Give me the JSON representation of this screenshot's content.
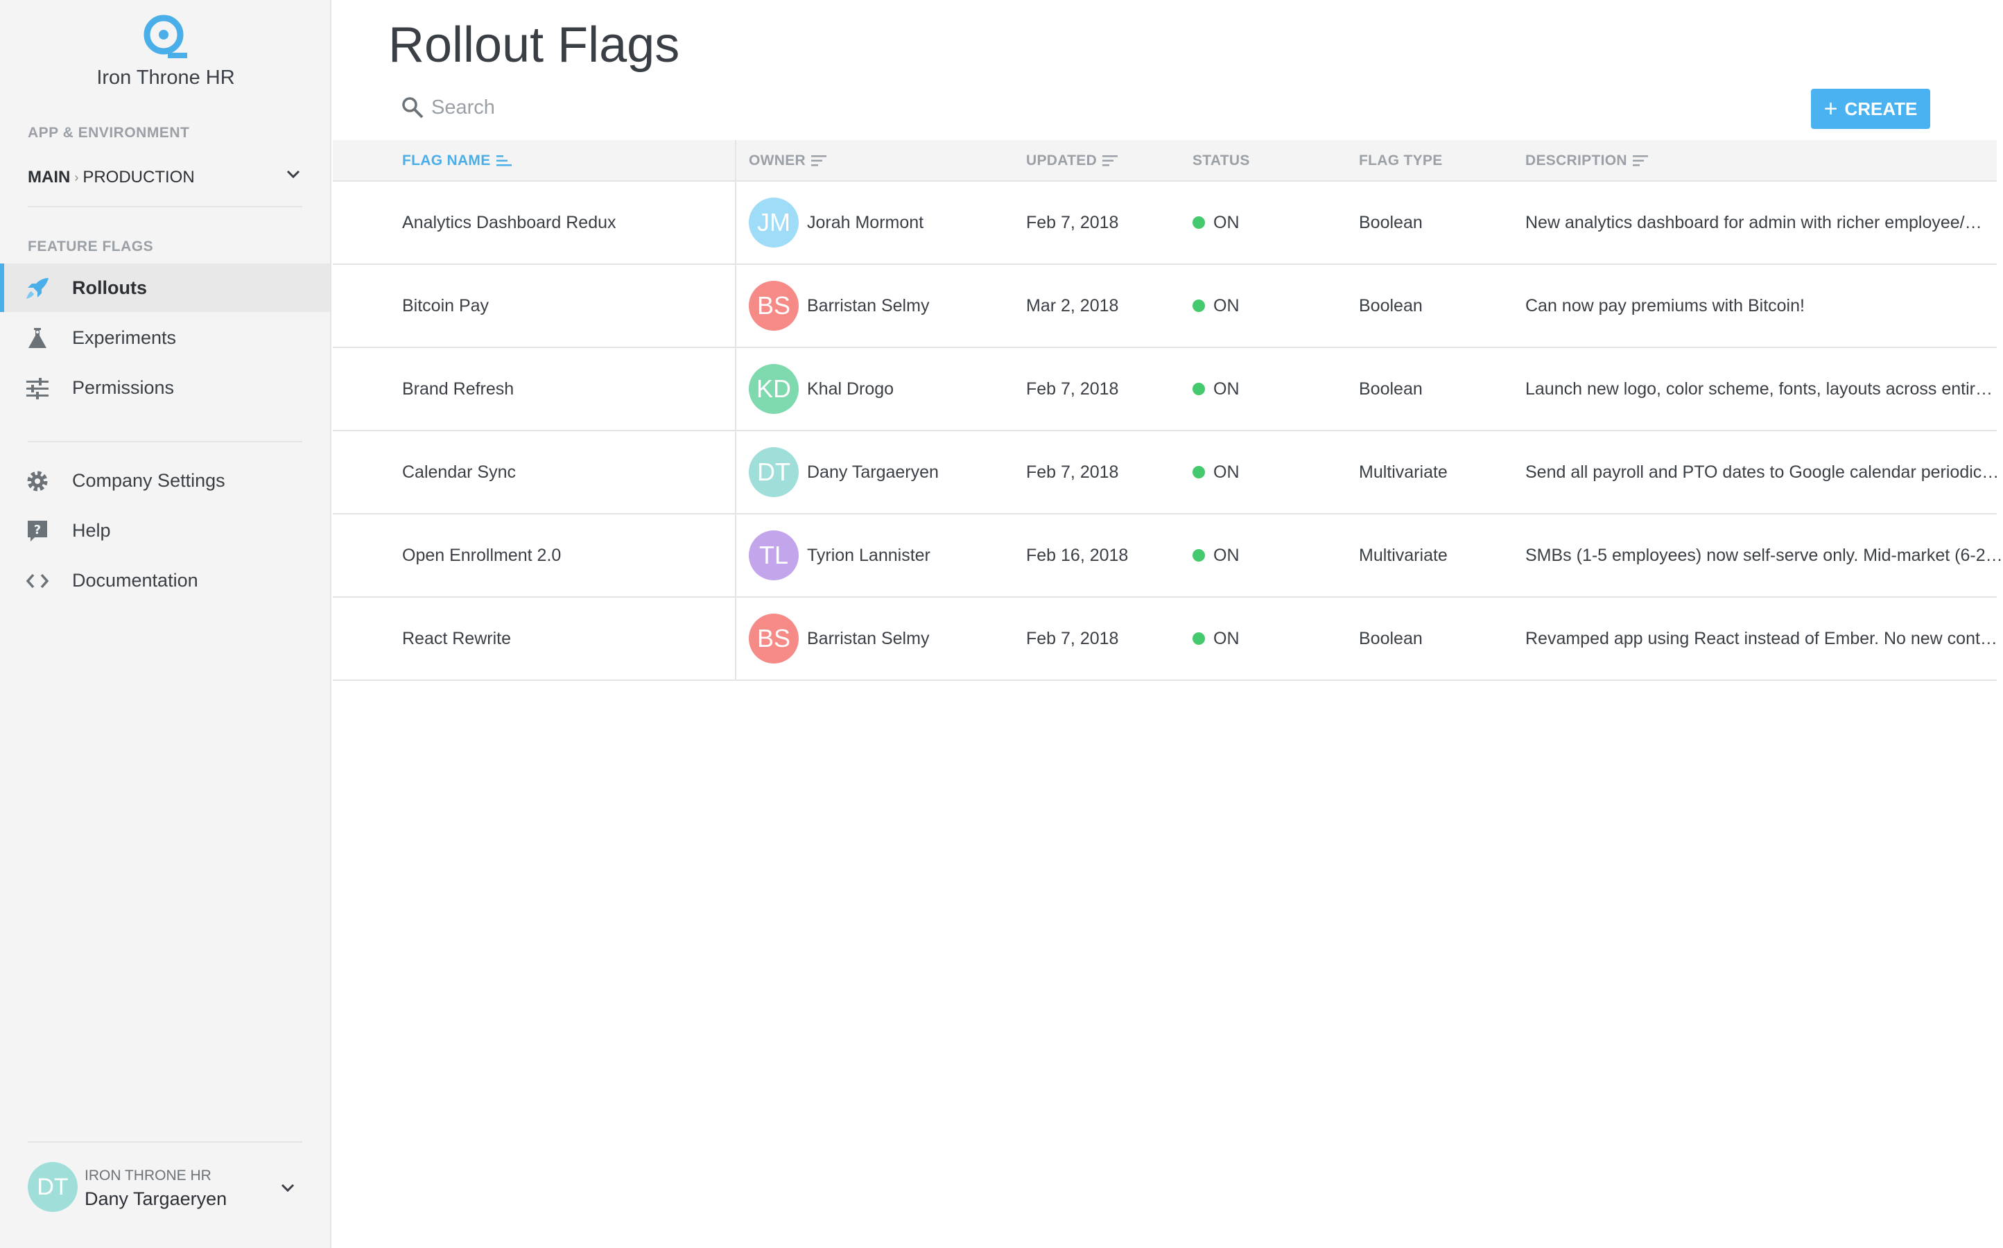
{
  "app": {
    "org_name": "Iron Throne HR",
    "logo_icon": "logo-q-icon",
    "accent_color": "#4aaee8"
  },
  "sidebar": {
    "env_section_label": "APP & ENVIRONMENT",
    "app_name": "MAIN",
    "env_separator": "›",
    "env_name": "PRODUCTION",
    "flags_section_label": "FEATURE FLAGS",
    "items": [
      {
        "label": "Rollouts",
        "icon": "rocket-icon",
        "active": true
      },
      {
        "label": "Experiments",
        "icon": "flask-icon",
        "active": false
      },
      {
        "label": "Permissions",
        "icon": "sliders-icon",
        "active": false
      }
    ],
    "secondary_items": [
      {
        "label": "Company Settings",
        "icon": "gear-icon"
      },
      {
        "label": "Help",
        "icon": "help-icon"
      },
      {
        "label": "Documentation",
        "icon": "code-icon"
      }
    ],
    "user": {
      "initials": "DT",
      "org": "IRON THRONE HR",
      "name": "Dany Targaeryen",
      "avatar_color": "#9fded9"
    }
  },
  "main": {
    "title": "Rollout Flags",
    "search_placeholder": "Search",
    "create_label": "CREATE",
    "create_icon": "plus-icon"
  },
  "table": {
    "columns": [
      {
        "label": "FLAG NAME",
        "sortable": true,
        "active": true
      },
      {
        "label": "OWNER",
        "sortable": true,
        "active": false
      },
      {
        "label": "UPDATED",
        "sortable": true,
        "active": false
      },
      {
        "label": "STATUS",
        "sortable": false,
        "active": false
      },
      {
        "label": "FLAG TYPE",
        "sortable": false,
        "active": false
      },
      {
        "label": "DESCRIPTION",
        "sortable": true,
        "active": false
      }
    ],
    "status_color": "#45c96e",
    "rows": [
      {
        "name": "Analytics Dashboard Redux",
        "owner_initials": "JM",
        "owner": "Jorah Mormont",
        "owner_color": "#9fdcf8",
        "updated": "Feb 7, 2018",
        "status": "ON",
        "type": "Boolean",
        "description": "New analytics dashboard for admin with richer employee/…"
      },
      {
        "name": "Bitcoin Pay",
        "owner_initials": "BS",
        "owner": "Barristan Selmy",
        "owner_color": "#f58a87",
        "updated": "Mar 2, 2018",
        "status": "ON",
        "type": "Boolean",
        "description": "Can now pay premiums with Bitcoin!"
      },
      {
        "name": "Brand Refresh",
        "owner_initials": "KD",
        "owner": "Khal Drogo",
        "owner_color": "#7ed9ae",
        "updated": "Feb 7, 2018",
        "status": "ON",
        "type": "Boolean",
        "description": "Launch new logo, color scheme, fonts, layouts across entir…"
      },
      {
        "name": "Calendar Sync",
        "owner_initials": "DT",
        "owner": "Dany Targaeryen",
        "owner_color": "#9fded9",
        "updated": "Feb 7, 2018",
        "status": "ON",
        "type": "Multivariate",
        "description": "Send all payroll and PTO dates to Google calendar periodic…"
      },
      {
        "name": "Open Enrollment 2.0",
        "owner_initials": "TL",
        "owner": "Tyrion Lannister",
        "owner_color": "#c3a5ec",
        "updated": "Feb 16, 2018",
        "status": "ON",
        "type": "Multivariate",
        "description": "SMBs (1-5 employees) now self-serve only. Mid-market (6-2…"
      },
      {
        "name": "React Rewrite",
        "owner_initials": "BS",
        "owner": "Barristan Selmy",
        "owner_color": "#f58a87",
        "updated": "Feb 7, 2018",
        "status": "ON",
        "type": "Boolean",
        "description": "Revamped app using React instead of Ember. No new cont…"
      }
    ]
  }
}
